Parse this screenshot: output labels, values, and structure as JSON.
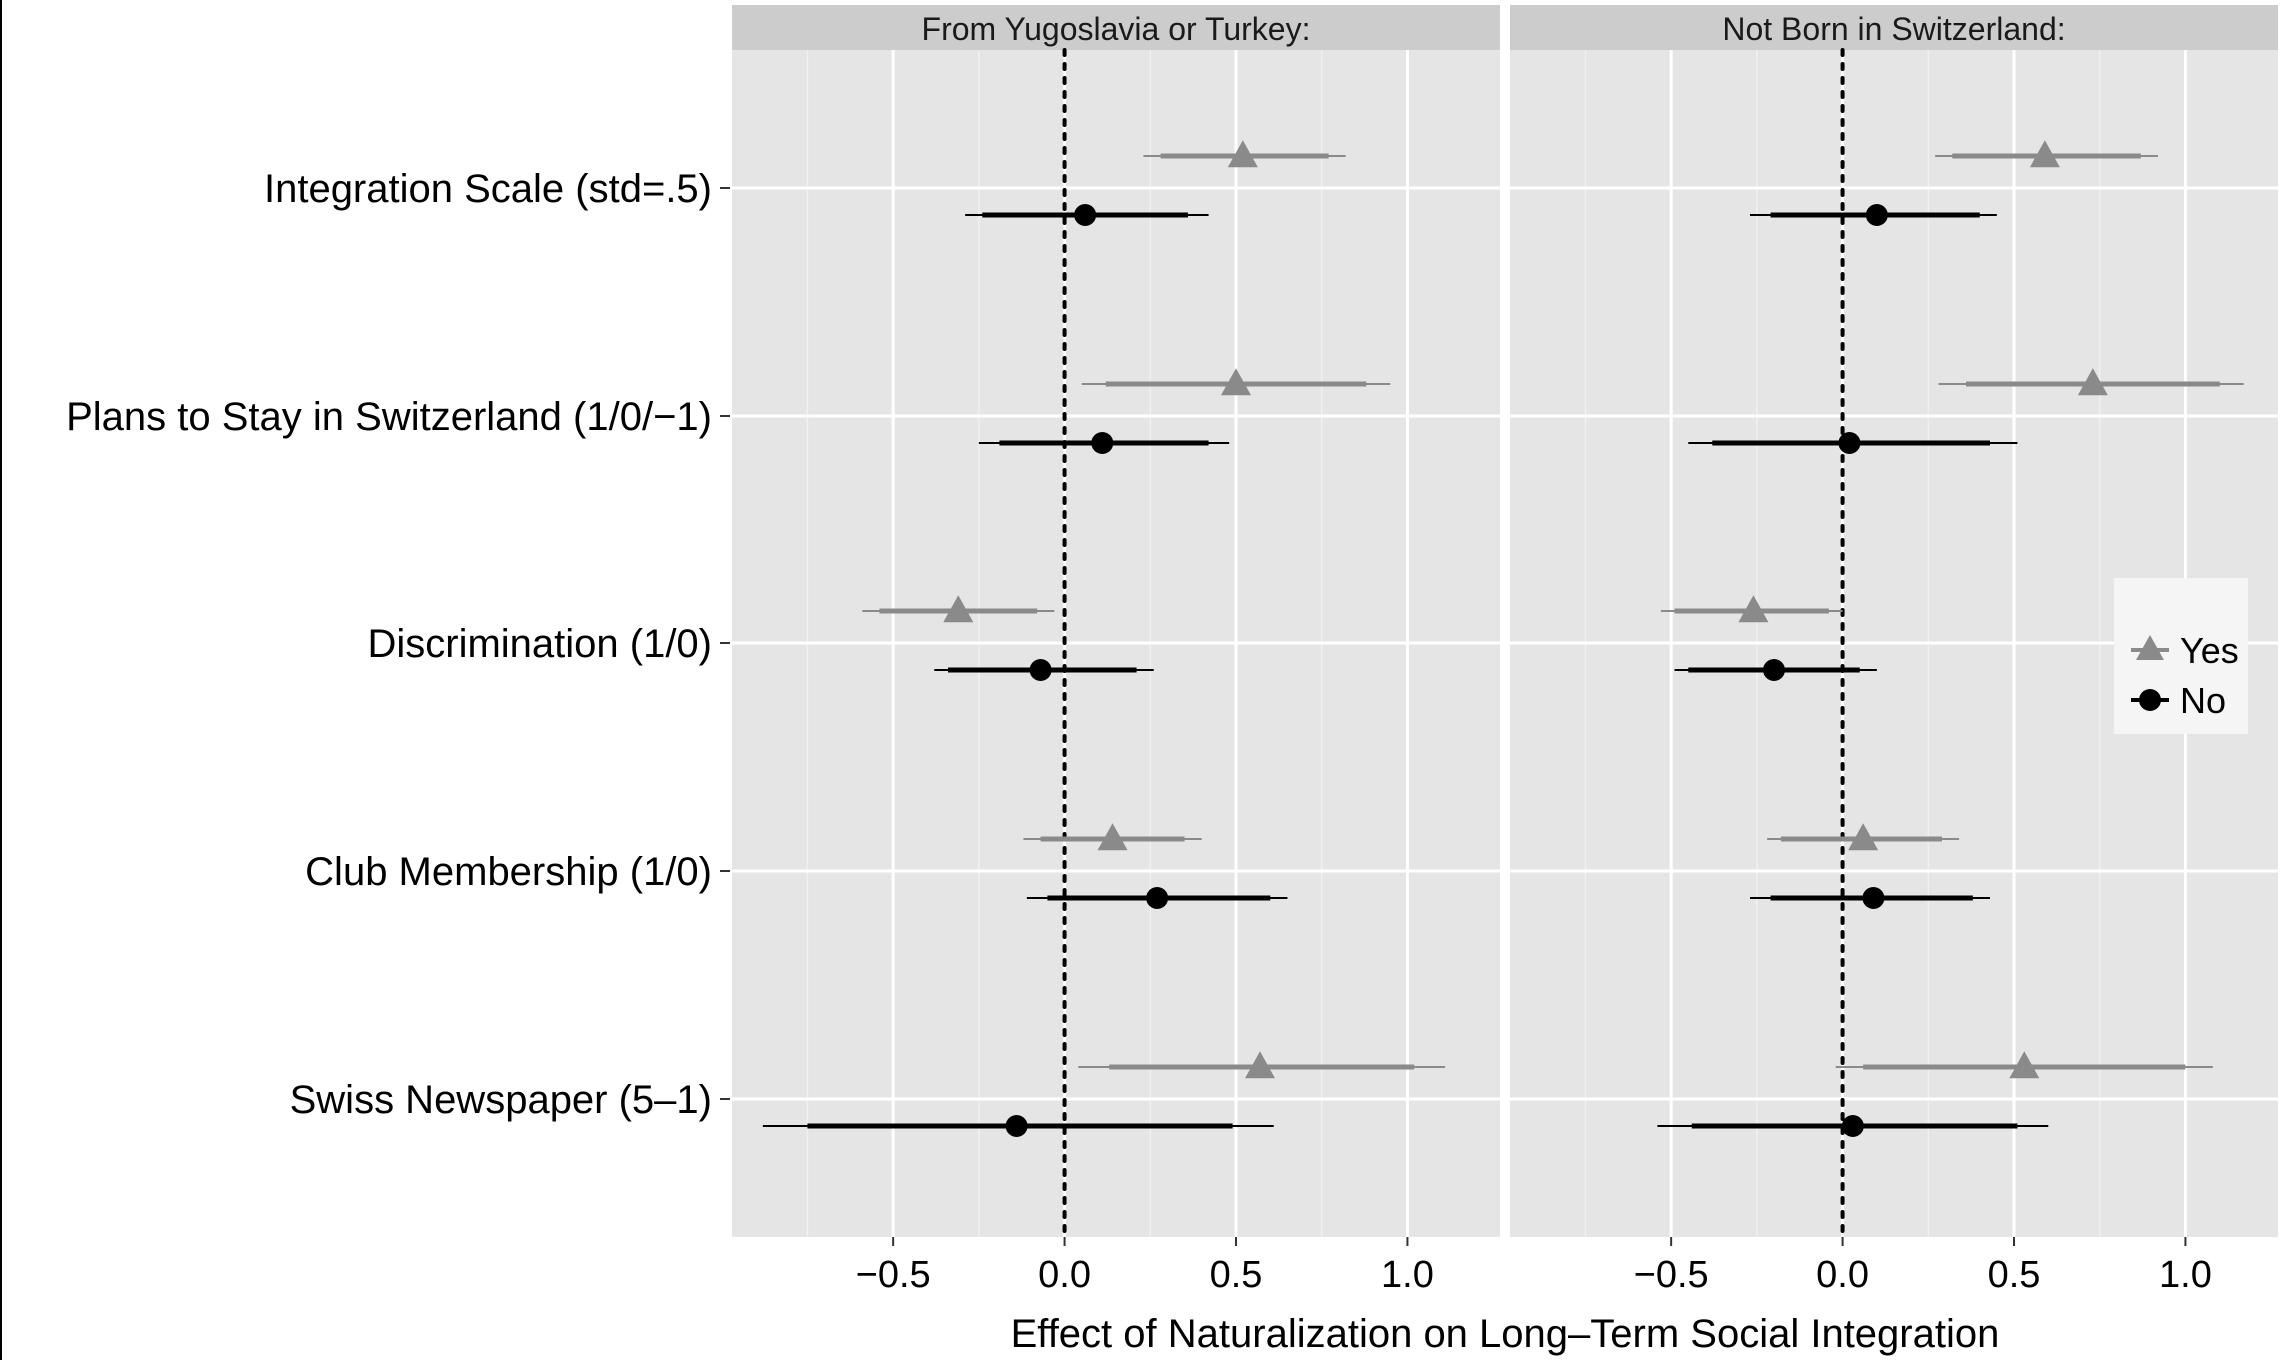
{
  "chart_data": {
    "type": "scatter",
    "xlabel": "Effect of Naturalization on Long–Term Social Integration",
    "xlim": [
      -0.97,
      1.27
    ],
    "x_ticks": [
      -0.5,
      0.0,
      0.5,
      1.0
    ],
    "x_tick_labels": [
      "−0.5",
      "0.0",
      "0.5",
      "1.0"
    ],
    "reference_line": 0,
    "categories": [
      "Integration Scale (std=.5)",
      "Plans to Stay in Switzerland (1/0/−1)",
      "Discrimination (1/0)",
      "Club Membership (1/0)",
      "Swiss Newspaper (5–1)"
    ],
    "legend": {
      "placement": "right",
      "entries": [
        {
          "label": "Yes",
          "marker": "triangle",
          "color": "#808080"
        },
        {
          "label": "No",
          "marker": "circle",
          "color": "#000000"
        }
      ]
    },
    "panels": [
      {
        "title": "From Yugoslavia or Turkey:",
        "series": [
          {
            "name": "Yes",
            "points": [
              {
                "est": 0.52,
                "lo90": 0.28,
                "hi90": 0.77,
                "lo95": 0.23,
                "hi95": 0.82
              },
              {
                "est": 0.5,
                "lo90": 0.12,
                "hi90": 0.88,
                "lo95": 0.05,
                "hi95": 0.95
              },
              {
                "est": -0.31,
                "lo90": -0.54,
                "hi90": -0.08,
                "lo95": -0.59,
                "hi95": -0.03
              },
              {
                "est": 0.14,
                "lo90": -0.07,
                "hi90": 0.35,
                "lo95": -0.12,
                "hi95": 0.4
              },
              {
                "est": 0.57,
                "lo90": 0.13,
                "hi90": 1.02,
                "lo95": 0.04,
                "hi95": 1.11
              }
            ]
          },
          {
            "name": "No",
            "points": [
              {
                "est": 0.06,
                "lo90": -0.24,
                "hi90": 0.36,
                "lo95": -0.29,
                "hi95": 0.42
              },
              {
                "est": 0.11,
                "lo90": -0.19,
                "hi90": 0.42,
                "lo95": -0.25,
                "hi95": 0.48
              },
              {
                "est": -0.07,
                "lo90": -0.34,
                "hi90": 0.21,
                "lo95": -0.38,
                "hi95": 0.26
              },
              {
                "est": 0.27,
                "lo90": -0.05,
                "hi90": 0.6,
                "lo95": -0.11,
                "hi95": 0.65
              },
              {
                "est": -0.14,
                "lo90": -0.75,
                "hi90": 0.49,
                "lo95": -0.88,
                "hi95": 0.61
              }
            ]
          }
        ]
      },
      {
        "title": "Not Born in Switzerland:",
        "series": [
          {
            "name": "Yes",
            "points": [
              {
                "est": 0.59,
                "lo90": 0.32,
                "hi90": 0.87,
                "lo95": 0.27,
                "hi95": 0.92
              },
              {
                "est": 0.73,
                "lo90": 0.36,
                "hi90": 1.1,
                "lo95": 0.28,
                "hi95": 1.17
              },
              {
                "est": -0.26,
                "lo90": -0.49,
                "hi90": -0.04,
                "lo95": -0.53,
                "hi95": 0.0
              },
              {
                "est": 0.06,
                "lo90": -0.18,
                "hi90": 0.29,
                "lo95": -0.22,
                "hi95": 0.34
              },
              {
                "est": 0.53,
                "lo90": 0.06,
                "hi90": 1.0,
                "lo95": -0.02,
                "hi95": 1.08
              }
            ]
          },
          {
            "name": "No",
            "points": [
              {
                "est": 0.1,
                "lo90": -0.21,
                "hi90": 0.4,
                "lo95": -0.27,
                "hi95": 0.45
              },
              {
                "est": 0.02,
                "lo90": -0.38,
                "hi90": 0.43,
                "lo95": -0.45,
                "hi95": 0.51
              },
              {
                "est": -0.2,
                "lo90": -0.45,
                "hi90": 0.05,
                "lo95": -0.49,
                "hi95": 0.1
              },
              {
                "est": 0.09,
                "lo90": -0.21,
                "hi90": 0.38,
                "lo95": -0.27,
                "hi95": 0.43
              },
              {
                "est": 0.03,
                "lo90": -0.44,
                "hi90": 0.51,
                "lo95": -0.54,
                "hi95": 0.6
              }
            ]
          }
        ]
      }
    ]
  }
}
